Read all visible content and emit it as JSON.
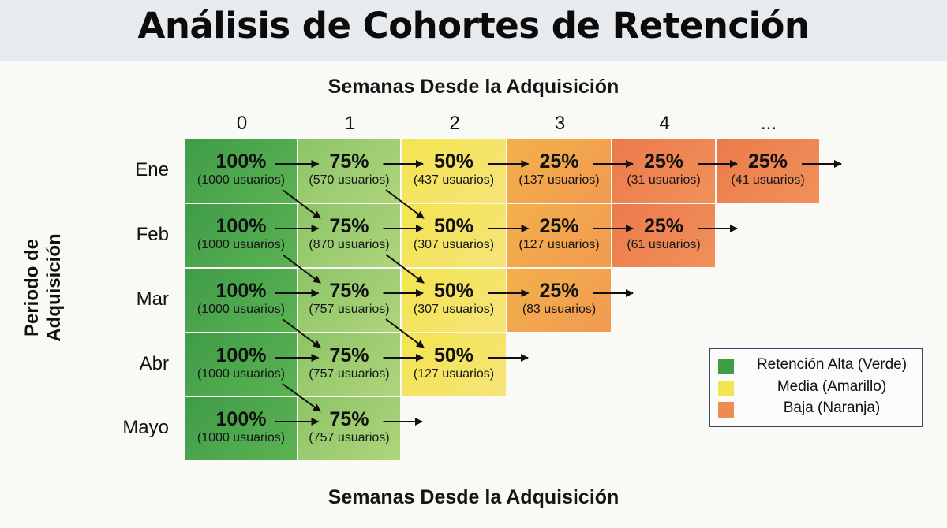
{
  "title": "Análisis de Cohortes de Retención",
  "colors": {
    "high_dark": "#4ea94a",
    "high_light": "#9ccb6c",
    "medium": "#f4e25a",
    "low_light": "#f4a64d",
    "low_dark": "#ec7e4c"
  },
  "chart_data": {
    "type": "table",
    "x_title_top": "Semanas Desde la Adquisición",
    "x_title_bottom": "Semanas Desde la Adquisición",
    "y_title": "Periodo de Adquisición",
    "weeks": [
      "0",
      "1",
      "2",
      "3",
      "4",
      "..."
    ],
    "cohorts": [
      {
        "label": "Ene",
        "cells": [
          {
            "pct": "100%",
            "users": "(1000 usuarios)",
            "level": "high_dark"
          },
          {
            "pct": "75%",
            "users": "(570 usuarios)",
            "level": "high_light"
          },
          {
            "pct": "50%",
            "users": "(437 usuarios)",
            "level": "medium"
          },
          {
            "pct": "25%",
            "users": "(137 usuarios)",
            "level": "low_light"
          },
          {
            "pct": "25%",
            "users": "(31 usuarios)",
            "level": "low_dark"
          },
          {
            "pct": "25%",
            "users": "(41 usuarios)",
            "level": "low_dark"
          }
        ]
      },
      {
        "label": "Feb",
        "cells": [
          {
            "pct": "100%",
            "users": "(1000 usuarios)",
            "level": "high_dark"
          },
          {
            "pct": "75%",
            "users": "(870 usuarios)",
            "level": "high_light"
          },
          {
            "pct": "50%",
            "users": "(307 usuarios)",
            "level": "medium"
          },
          {
            "pct": "25%",
            "users": "(127 usuarios)",
            "level": "low_light"
          },
          {
            "pct": "25%",
            "users": "(61 usuarios)",
            "level": "low_dark"
          }
        ]
      },
      {
        "label": "Mar",
        "cells": [
          {
            "pct": "100%",
            "users": "(1000 usuarios)",
            "level": "high_dark"
          },
          {
            "pct": "75%",
            "users": "(757 usuarios)",
            "level": "high_light"
          },
          {
            "pct": "50%",
            "users": "(307 usuarios)",
            "level": "medium"
          },
          {
            "pct": "25%",
            "users": "(83 usuarios)",
            "level": "low_light"
          }
        ]
      },
      {
        "label": "Abr",
        "cells": [
          {
            "pct": "100%",
            "users": "(1000 usuarios)",
            "level": "high_dark"
          },
          {
            "pct": "75%",
            "users": "(757 usuarios)",
            "level": "high_light"
          },
          {
            "pct": "50%",
            "users": "(127 usuarios)",
            "level": "medium"
          }
        ]
      },
      {
        "label": "Mayo",
        "cells": [
          {
            "pct": "100%",
            "users": "(1000 usuarios)",
            "level": "high_dark"
          },
          {
            "pct": "75%",
            "users": "(757 usuarios)",
            "level": "high_light"
          }
        ]
      }
    ],
    "legend": [
      {
        "label": "Retención Alta (Verde)",
        "color": "#3f9c47"
      },
      {
        "label": "Media (Amarillo)",
        "color": "#f3e54f"
      },
      {
        "label": "Baja (Naranja)",
        "color": "#ef8a50"
      }
    ]
  }
}
